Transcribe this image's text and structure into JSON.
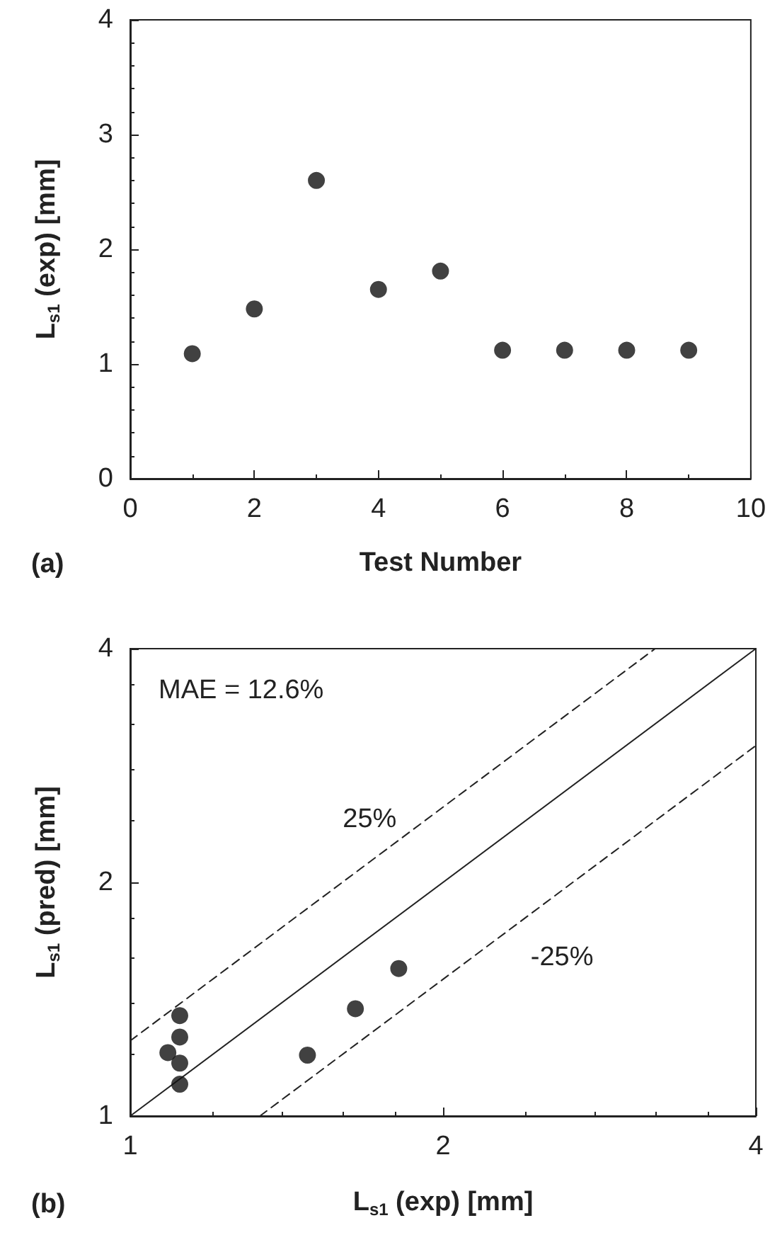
{
  "chart_data": [
    {
      "type": "scatter",
      "xlabel": "Test Number",
      "ylabel": "L$_{s1}$ (exp) [mm]",
      "annotations": [
        "(a)"
      ],
      "x": [
        1,
        2,
        3,
        4,
        5,
        6,
        7,
        8,
        9
      ],
      "series": [
        {
          "color": "#111111",
          "values": [
            1.09,
            1.48,
            2.6,
            1.65,
            1.81,
            1.12,
            1.12,
            1.12,
            1.12
          ]
        }
      ],
      "xlim": [
        0,
        10
      ],
      "xticks": [
        0,
        2,
        4,
        6,
        8,
        10
      ],
      "ylim": [
        0,
        4
      ],
      "yticks": [
        0,
        1,
        2,
        3,
        4
      ],
      "marker": "circle",
      "grid": false
    },
    {
      "type": "scatter",
      "xlabel": "L$_{s1}$ (exp) [mm]",
      "ylabel": "L$_{s1}$ (pred) [mm]",
      "annotations": [
        "MAE = 12.6%",
        {
          "text": "25%",
          "x": 1.7,
          "y": 2.41
        },
        "-25%",
        "(b)"
      ],
      "series": [
        {
          "type": "scatter",
          "color": "#111111",
          "x": [
            1.116,
            1.116,
            1.087,
            1.116,
            1.116,
            1.481,
            1.647,
            1.813
          ],
          "values": [
            1.347,
            1.264,
            1.207,
            1.17,
            1.099,
            1.198,
            1.375,
            1.549
          ]
        },
        {
          "type": "line",
          "color": "#222222",
          "line_style": "solid",
          "marker": "none",
          "x": [
            1,
            4
          ],
          "values": [
            1,
            4
          ]
        },
        {
          "type": "line",
          "color": "#222222",
          "line_style": "dashed",
          "marker": "none",
          "x": [
            1,
            3.2
          ],
          "values": [
            1.25,
            4
          ]
        },
        {
          "type": "line",
          "color": "#222222",
          "line_style": "dashed",
          "marker": "none",
          "x": [
            1.333,
            4
          ],
          "values": [
            1,
            3
          ]
        }
      ],
      "log": "xy",
      "xlim": [
        1,
        4
      ],
      "xticks": [
        1,
        2,
        4
      ],
      "ylim": [
        1,
        4
      ],
      "yticks": [
        1,
        2,
        4
      ],
      "marker": "circle",
      "grid": false
    }
  ]
}
